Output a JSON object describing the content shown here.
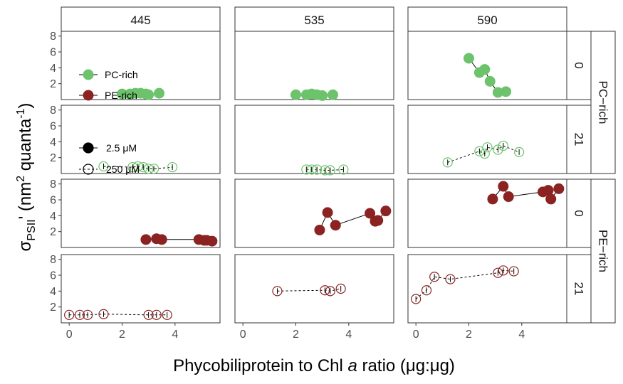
{
  "chart_data": {
    "type": "scatter",
    "title": "",
    "xlabel": "Phycobiliprotein to Chl a ratio (μg:μg)",
    "xlabel_parts": {
      "pre": "Phycobiliprotein to Chl ",
      "italic": "a",
      "post": " ratio (μg:μg)"
    },
    "ylabel": "σPSII' (nm2 quanta-1)",
    "ylabel_parts": {
      "sigma": "σ",
      "sub": "PSII",
      "prime": "'",
      "open": "(nm",
      "sup1": "2",
      "mid": " quanta",
      "sup2": "-1",
      "close": ")"
    },
    "xlim": [
      -0.3,
      5.7
    ],
    "ylim": [
      0,
      8.6
    ],
    "x_ticks": [
      0,
      2,
      4
    ],
    "y_ticks": [
      2,
      4,
      6,
      8
    ],
    "grid": false,
    "col_facets": [
      "445",
      "535",
      "590"
    ],
    "row_facets": [
      {
        "value": "0",
        "group": "PC-rich"
      },
      {
        "value": "21",
        "group": "PC-rich"
      },
      {
        "value": "0",
        "group": "PE-rich"
      },
      {
        "value": "21",
        "group": "PE-rich"
      }
    ],
    "outer_row_labels": [
      "PC−rich",
      "PE−rich"
    ],
    "legend_position": "inside-left",
    "legend": {
      "strain": [
        {
          "label": "PC-rich",
          "color": "#6cc36c"
        },
        {
          "label": "PE-rich",
          "color": "#8b2323"
        }
      ],
      "nitrate": [
        {
          "label": "2.5 μM",
          "style": "filled"
        },
        {
          "label": "250 μM",
          "style": "open"
        }
      ]
    },
    "panels": [
      {
        "row": 0,
        "col": 0,
        "strain": "PC-rich",
        "nitrate": "2.5 μM",
        "color": "#6cc36c",
        "filled": true,
        "x": [
          2.0,
          2.3,
          2.5,
          2.7,
          2.9,
          3.0,
          3.4
        ],
        "y": [
          0.7,
          0.7,
          0.8,
          0.8,
          0.7,
          0.6,
          0.8
        ]
      },
      {
        "row": 0,
        "col": 1,
        "strain": "PC-rich",
        "nitrate": "2.5 μM",
        "color": "#6cc36c",
        "filled": true,
        "x": [
          2.0,
          2.4,
          2.6,
          2.8,
          3.0,
          3.4
        ],
        "y": [
          0.6,
          0.6,
          0.7,
          0.6,
          0.5,
          0.6
        ]
      },
      {
        "row": 0,
        "col": 2,
        "strain": "PC-rich",
        "nitrate": "2.5 μM",
        "color": "#6cc36c",
        "filled": true,
        "x": [
          2.0,
          2.4,
          2.6,
          2.8,
          3.1,
          3.4
        ],
        "y": [
          5.2,
          3.4,
          3.8,
          2.3,
          0.9,
          1.0
        ]
      },
      {
        "row": 1,
        "col": 0,
        "strain": "PC-rich",
        "nitrate": "250 μM",
        "color": "#6cc36c",
        "filled": false,
        "x": [
          1.3,
          2.4,
          2.6,
          2.8,
          3.0,
          3.2,
          3.9
        ],
        "y": [
          0.9,
          0.8,
          0.9,
          0.8,
          0.6,
          0.6,
          0.8
        ]
      },
      {
        "row": 1,
        "col": 1,
        "strain": "PC-rich",
        "nitrate": "250 μM",
        "color": "#6cc36c",
        "filled": false,
        "x": [
          2.4,
          2.6,
          2.8,
          3.1,
          3.3,
          3.8
        ],
        "y": [
          0.5,
          0.5,
          0.5,
          0.4,
          0.4,
          0.5
        ]
      },
      {
        "row": 1,
        "col": 2,
        "strain": "PC-rich",
        "nitrate": "250 μM",
        "color": "#6cc36c",
        "filled": false,
        "x": [
          1.2,
          2.4,
          2.6,
          2.7,
          3.1,
          3.3,
          3.9
        ],
        "y": [
          1.4,
          2.8,
          2.5,
          3.3,
          3.0,
          3.5,
          2.7
        ]
      },
      {
        "row": 2,
        "col": 0,
        "strain": "PE-rich",
        "nitrate": "2.5 μM",
        "color": "#8b2323",
        "filled": true,
        "x": [
          2.9,
          3.3,
          3.5,
          4.9,
          5.1,
          5.2,
          5.4
        ],
        "y": [
          1.0,
          1.1,
          1.0,
          1.0,
          0.9,
          0.9,
          0.8
        ]
      },
      {
        "row": 2,
        "col": 1,
        "strain": "PE-rich",
        "nitrate": "2.5 μM",
        "color": "#8b2323",
        "filled": true,
        "x": [
          2.9,
          3.2,
          3.5,
          4.8,
          5.0,
          5.1,
          5.4
        ],
        "y": [
          2.2,
          4.4,
          2.8,
          4.3,
          3.3,
          3.4,
          4.6
        ]
      },
      {
        "row": 2,
        "col": 2,
        "strain": "PE-rich",
        "nitrate": "2.5 μM",
        "color": "#8b2323",
        "filled": true,
        "x": [
          2.9,
          3.3,
          3.5,
          4.8,
          5.0,
          5.1,
          5.4
        ],
        "y": [
          6.1,
          7.7,
          6.4,
          7.0,
          7.2,
          6.1,
          7.4
        ]
      },
      {
        "row": 3,
        "col": 0,
        "strain": "PE-rich",
        "nitrate": "250 μM",
        "color": "#8b2323",
        "filled": false,
        "x": [
          0.0,
          0.4,
          0.7,
          1.3,
          3.0,
          3.3,
          3.7
        ],
        "y": [
          1.0,
          1.0,
          1.0,
          1.1,
          1.0,
          1.0,
          1.0
        ]
      },
      {
        "row": 3,
        "col": 1,
        "strain": "PE-rich",
        "nitrate": "250 μM",
        "color": "#8b2323",
        "filled": false,
        "x": [
          1.3,
          3.1,
          3.3,
          3.7
        ],
        "y": [
          4.0,
          4.1,
          4.0,
          4.3
        ]
      },
      {
        "row": 3,
        "col": 2,
        "strain": "PE-rich",
        "nitrate": "250 μM",
        "color": "#8b2323",
        "filled": false,
        "x": [
          0.0,
          0.4,
          0.7,
          1.3,
          3.1,
          3.3,
          3.7
        ],
        "y": [
          3.0,
          4.1,
          5.8,
          5.5,
          6.3,
          6.6,
          6.5
        ]
      }
    ]
  }
}
